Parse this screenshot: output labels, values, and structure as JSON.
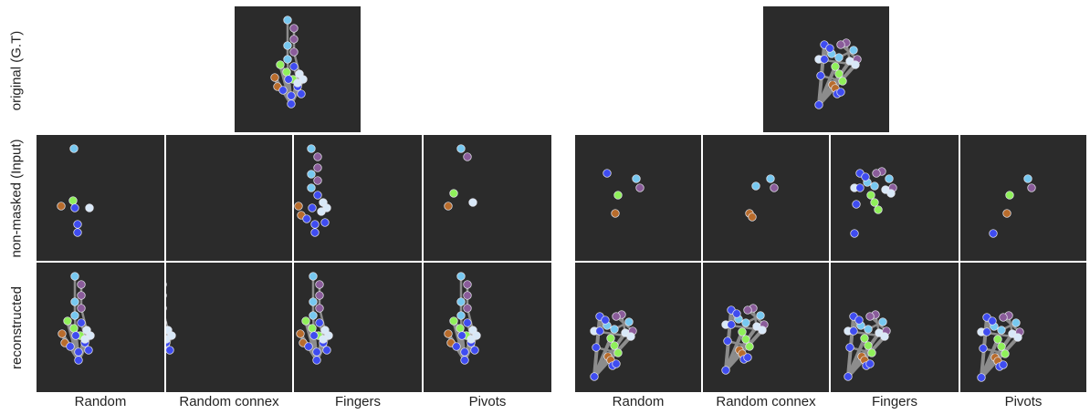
{
  "row_labels": {
    "original": "original (G.T)",
    "input": "non-masked (Input)",
    "reconstructed": "reconstructed"
  },
  "column_labels": {
    "left": [
      "Random",
      "Random connex",
      "Fingers",
      "Pivots"
    ],
    "right": [
      "Random",
      "Random connex",
      "Fingers",
      "Pivots"
    ]
  },
  "colors": {
    "panel_background": "#2b2b2b",
    "bone": "#8c8c8c",
    "joint_blue": "#3f4cf0",
    "joint_light_blue": "#77c8f0",
    "joint_pale": "#d8e8f8",
    "joint_purple": "#8a5c9a",
    "joint_green": "#8ff05a",
    "joint_orange": "#b86c2c"
  }
}
